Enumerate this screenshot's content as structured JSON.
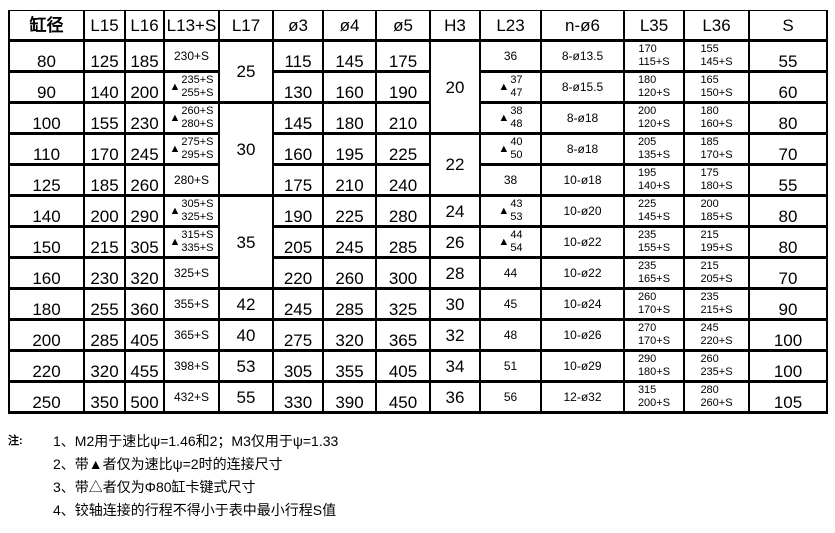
{
  "headers": [
    "缸径",
    "L15",
    "L16",
    "L13+S",
    "L17",
    "ø3",
    "ø4",
    "ø5",
    "H3",
    "L23",
    "n-ø6",
    "L35",
    "L36",
    "S"
  ],
  "rows": [
    {
      "bore": "80",
      "l15": "125",
      "l16": "185",
      "l13": {
        "tri": false,
        "top": "230+S",
        "bottom": ""
      },
      "l17": "25",
      "d3": "115",
      "d4": "145",
      "d5": "175",
      "h3": "20",
      "l23": {
        "tri": false,
        "top": "36",
        "bottom": ""
      },
      "n": "8-ø13.5",
      "l35": [
        "170",
        "115+S"
      ],
      "l36": [
        "155",
        "145+S"
      ],
      "s": "55"
    },
    {
      "bore": "90",
      "l15": "140",
      "l16": "200",
      "l13": {
        "tri": true,
        "top": "235+S",
        "bottom": "255+S"
      },
      "l17": null,
      "d3": "130",
      "d4": "160",
      "d5": "190",
      "h3": null,
      "l23": {
        "tri": true,
        "top": "37",
        "bottom": "47"
      },
      "n": "8-ø15.5",
      "l35": [
        "180",
        "120+S"
      ],
      "l36": [
        "165",
        "150+S"
      ],
      "s": "60"
    },
    {
      "bore": "100",
      "l15": "155",
      "l16": "230",
      "l13": {
        "tri": true,
        "top": "260+S",
        "bottom": "280+S"
      },
      "l17": "30",
      "d3": "145",
      "d4": "180",
      "d5": "210",
      "h3": null,
      "l23": {
        "tri": true,
        "top": "38",
        "bottom": "48"
      },
      "n": "8-ø18",
      "l35": [
        "200",
        "120+S"
      ],
      "l36": [
        "180",
        "160+S"
      ],
      "s": "80"
    },
    {
      "bore": "110",
      "l15": "170",
      "l16": "245",
      "l13": {
        "tri": true,
        "top": "275+S",
        "bottom": "295+S"
      },
      "l17": null,
      "d3": "160",
      "d4": "195",
      "d5": "225",
      "h3": "22",
      "l23": {
        "tri": true,
        "top": "40",
        "bottom": "50"
      },
      "n": "8-ø18",
      "l35": [
        "205",
        "135+S"
      ],
      "l36": [
        "185",
        "170+S"
      ],
      "s": "70"
    },
    {
      "bore": "125",
      "l15": "185",
      "l16": "260",
      "l13": {
        "tri": false,
        "top": "280+S",
        "bottom": ""
      },
      "l17": null,
      "d3": "175",
      "d4": "210",
      "d5": "240",
      "h3": null,
      "l23": {
        "tri": false,
        "top": "38",
        "bottom": ""
      },
      "n": "10-ø18",
      "l35": [
        "195",
        "140+S"
      ],
      "l36": [
        "175",
        "180+S"
      ],
      "s": "55"
    },
    {
      "bore": "140",
      "l15": "200",
      "l16": "290",
      "l13": {
        "tri": true,
        "top": "305+S",
        "bottom": "325+S"
      },
      "l17": "35",
      "d3": "190",
      "d4": "225",
      "d5": "280",
      "h3": "24",
      "l23": {
        "tri": true,
        "top": "43",
        "bottom": "53"
      },
      "n": "10-ø20",
      "l35": [
        "225",
        "145+S"
      ],
      "l36": [
        "200",
        "185+S"
      ],
      "s": "80"
    },
    {
      "bore": "150",
      "l15": "215",
      "l16": "305",
      "l13": {
        "tri": true,
        "top": "315+S",
        "bottom": "335+S"
      },
      "l17": null,
      "d3": "205",
      "d4": "245",
      "d5": "285",
      "h3": "26",
      "l23": {
        "tri": true,
        "top": "44",
        "bottom": "54"
      },
      "n": "10-ø22",
      "l35": [
        "235",
        "155+S"
      ],
      "l36": [
        "215",
        "195+S"
      ],
      "s": "80"
    },
    {
      "bore": "160",
      "l15": "230",
      "l16": "320",
      "l13": {
        "tri": false,
        "top": "325+S",
        "bottom": ""
      },
      "l17": null,
      "d3": "220",
      "d4": "260",
      "d5": "300",
      "h3": "28",
      "l23": {
        "tri": false,
        "top": "44",
        "bottom": ""
      },
      "n": "10-ø22",
      "l35": [
        "235",
        "165+S"
      ],
      "l36": [
        "215",
        "205+S"
      ],
      "s": "70"
    },
    {
      "bore": "180",
      "l15": "255",
      "l16": "360",
      "l13": {
        "tri": false,
        "top": "355+S",
        "bottom": ""
      },
      "l17": "42",
      "d3": "245",
      "d4": "285",
      "d5": "325",
      "h3": "30",
      "l23": {
        "tri": false,
        "top": "45",
        "bottom": ""
      },
      "n": "10-ø24",
      "l35": [
        "260",
        "170+S"
      ],
      "l36": [
        "235",
        "215+S"
      ],
      "s": "90"
    },
    {
      "bore": "200",
      "l15": "285",
      "l16": "405",
      "l13": {
        "tri": false,
        "top": "365+S",
        "bottom": ""
      },
      "l17": "40",
      "d3": "275",
      "d4": "320",
      "d5": "365",
      "h3": "32",
      "l23": {
        "tri": false,
        "top": "48",
        "bottom": ""
      },
      "n": "10-ø26",
      "l35": [
        "270",
        "170+S"
      ],
      "l36": [
        "245",
        "220+S"
      ],
      "s": "100"
    },
    {
      "bore": "220",
      "l15": "320",
      "l16": "455",
      "l13": {
        "tri": false,
        "top": "398+S",
        "bottom": ""
      },
      "l17": "53",
      "d3": "305",
      "d4": "355",
      "d5": "405",
      "h3": "34",
      "l23": {
        "tri": false,
        "top": "51",
        "bottom": ""
      },
      "n": "10-ø29",
      "l35": [
        "290",
        "180+S"
      ],
      "l36": [
        "260",
        "235+S"
      ],
      "s": "100"
    },
    {
      "bore": "250",
      "l15": "350",
      "l16": "500",
      "l13": {
        "tri": false,
        "top": "432+S",
        "bottom": ""
      },
      "l17": "55",
      "d3": "330",
      "d4": "390",
      "d5": "450",
      "h3": "36",
      "l23": {
        "tri": false,
        "top": "56",
        "bottom": ""
      },
      "n": "12-ø32",
      "l35": [
        "315",
        "200+S"
      ],
      "l36": [
        "280",
        "260+S"
      ],
      "s": "105"
    }
  ],
  "spans": {
    "l17": {
      "0": 2,
      "2": 3,
      "5": 3
    },
    "h3": {
      "0": 3,
      "3": 2
    }
  },
  "triangle_glyph": "▲",
  "notes": {
    "label": "注:",
    "items": [
      "1、M2用于速比ψ=1.46和2；M3仅用于ψ=1.33",
      "2、带▲者仅为速比ψ=2时的连接尺寸",
      "3、带△者仅为Φ80缸卡键式尺寸",
      "4、铰轴连接的行程不得小于表中最小行程S值"
    ]
  }
}
